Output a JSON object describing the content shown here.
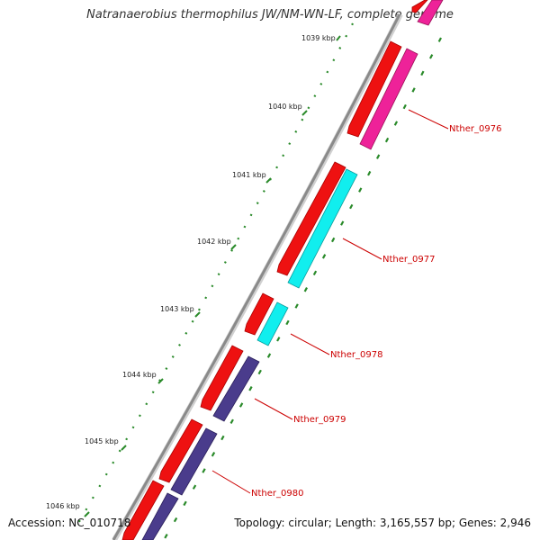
{
  "title": "Natranaerobius thermophilus JW/NM-WN-LF, complete genome",
  "footer": {
    "accession": "Accession: NC_010718",
    "summary": "Topology: circular; Length: 3,165,557 bp; Genes: 2,946"
  },
  "colors": {
    "backbone": "#8f8f8f",
    "forward_cds": "#ee1111",
    "reverse_cds_magenta": "#ee2299",
    "reverse_cds_cyan": "#11eeee",
    "reverse_cds_purple": "#4a3c8c",
    "tick_marks": "#2a8a2a",
    "label_text": "#cc0000"
  },
  "ticks": [
    {
      "label": "1039 kbp"
    },
    {
      "label": "1040 kbp"
    },
    {
      "label": "1041 kbp"
    },
    {
      "label": "1042 kbp"
    },
    {
      "label": "1043 kbp"
    },
    {
      "label": "1044 kbp"
    },
    {
      "label": "1045 kbp"
    },
    {
      "label": "1046 kbp"
    }
  ],
  "genes": [
    {
      "label": "Nther_0976"
    },
    {
      "label": "Nther_0977"
    },
    {
      "label": "Nther_0978"
    },
    {
      "label": "Nther_0979"
    },
    {
      "label": "Nther_0980"
    }
  ]
}
